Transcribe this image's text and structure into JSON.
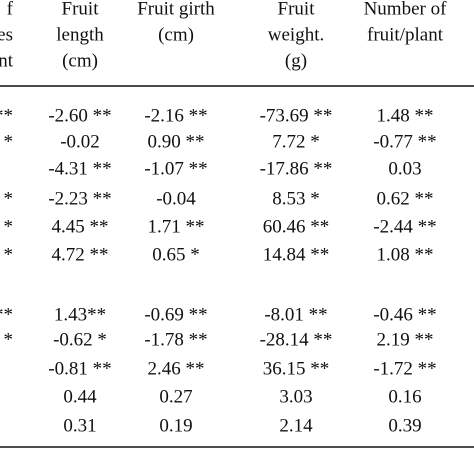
{
  "table": {
    "header": [
      [
        "f",
        "es",
        "nt"
      ],
      [
        "Fruit",
        "length",
        "(cm)"
      ],
      [
        "Fruit girth",
        "(cm)"
      ],
      [
        "Fruit",
        "weight.",
        "(g)"
      ],
      [
        "Number of",
        "fruit/plant"
      ]
    ],
    "groups": [
      {
        "rows": [
          [
            "**",
            "-2.60 **",
            "-2.16 **",
            "-73.69 **",
            "1.48 **"
          ],
          [
            "*",
            "-0.02",
            "0.90 **",
            "7.72 *",
            "-0.77 **"
          ],
          [
            null,
            "-4.31 **",
            "-1.07 **",
            "-17.86 **",
            "0.03"
          ],
          [
            "*",
            "-2.23 **",
            "-0.04",
            "8.53 *",
            "0.62 **"
          ],
          [
            "*",
            "4.45 **",
            "1.71 **",
            "60.46 **",
            "-2.44 **"
          ],
          [
            "*",
            "4.72 **",
            "0.65 *",
            "14.84 **",
            "1.08 **"
          ]
        ]
      },
      {
        "rows": [
          [
            "**",
            "1.43**",
            "-0.69 **",
            "-8.01 **",
            "-0.46 **"
          ],
          [
            "*",
            "-0.62 *",
            "-1.78 **",
            "-28.14 **",
            "2.19 **"
          ],
          [
            null,
            "-0.81 **",
            "2.46 **",
            "36.15 **",
            "-1.72 **"
          ],
          [
            null,
            "0.44",
            "0.27",
            "3.03",
            "0.16"
          ],
          [
            null,
            "0.31",
            "0.19",
            "2.14",
            "0.39"
          ]
        ]
      }
    ]
  }
}
